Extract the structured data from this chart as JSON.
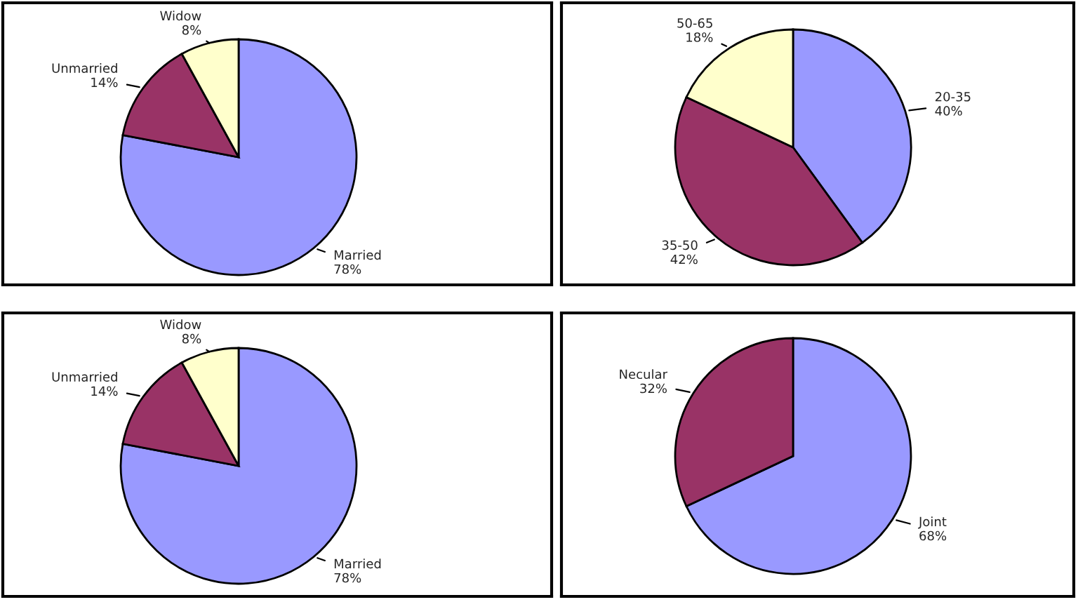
{
  "chart_data": [
    {
      "type": "pie",
      "categories": [
        "Married",
        "Unmarried",
        "Widow"
      ],
      "values": [
        78,
        14,
        8
      ],
      "value_labels": [
        "78%",
        "14%",
        "8%"
      ],
      "colors": [
        "#9999ff",
        "#993366",
        "#ffffcc"
      ]
    },
    {
      "type": "pie",
      "categories": [
        "20-35",
        "35-50",
        "50-65"
      ],
      "values": [
        40,
        42,
        18
      ],
      "value_labels": [
        "40%",
        "42%",
        "18%"
      ],
      "colors": [
        "#9999ff",
        "#993366",
        "#ffffcc"
      ]
    },
    {
      "type": "pie",
      "categories": [
        "Married",
        "Unmarried",
        "Widow"
      ],
      "values": [
        78,
        14,
        8
      ],
      "value_labels": [
        "78%",
        "14%",
        "8%"
      ],
      "colors": [
        "#9999ff",
        "#993366",
        "#ffffcc"
      ]
    },
    {
      "type": "pie",
      "categories": [
        "Joint",
        "Necular"
      ],
      "values": [
        68,
        32
      ],
      "value_labels": [
        "68%",
        "32%"
      ],
      "colors": [
        "#9999ff",
        "#993366"
      ]
    }
  ]
}
